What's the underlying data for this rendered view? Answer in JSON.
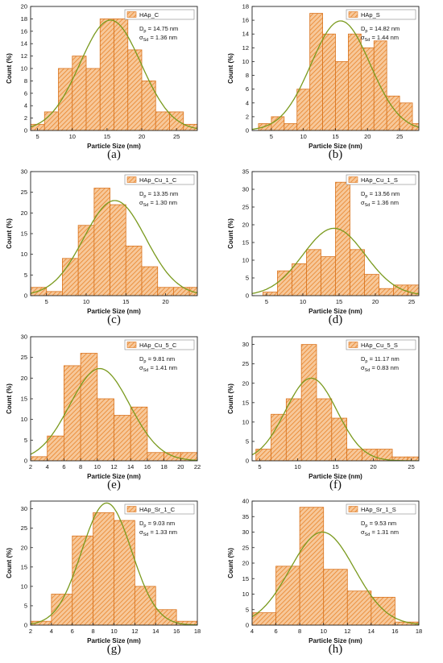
{
  "panel_letters": [
    "(a)",
    "(b)",
    "(c)",
    "(d)",
    "(e)",
    "(f)",
    "(g)",
    "(h)"
  ],
  "colors": {
    "bar_fill": "#f7c89a",
    "bar_hatch": "#e8842a",
    "bar_edge": "#d9731d",
    "fit_curve": "#7a9a1e",
    "axis": "#222222"
  },
  "chart_data": [
    {
      "type": "bar",
      "legend": "HAp_C",
      "stats": [
        {
          "sym": "D",
          "sub": "p",
          "text": " = 14.75 nm"
        },
        {
          "sym": "σ",
          "sub": "Sd",
          "text": " = 1.36 nm"
        }
      ],
      "xlabel": "Particle Size (nm)",
      "ylabel": "Count (%)",
      "xlim": [
        4,
        28
      ],
      "ylim": [
        0,
        20
      ],
      "xticks": [
        5,
        10,
        15,
        20,
        25
      ],
      "yticks": [
        0,
        2,
        4,
        6,
        8,
        10,
        12,
        14,
        16,
        18,
        20
      ],
      "bins": [
        [
          4,
          1
        ],
        [
          6,
          3
        ],
        [
          8,
          10
        ],
        [
          10,
          12
        ],
        [
          12,
          10
        ],
        [
          14,
          18
        ],
        [
          16,
          18
        ],
        [
          18,
          13
        ],
        [
          20,
          8
        ],
        [
          22,
          3
        ],
        [
          24,
          3
        ],
        [
          26,
          1
        ]
      ],
      "bin_width": 2,
      "fit": {
        "mu": 15.5,
        "sigma": 4.4,
        "peak": 17.8
      }
    },
    {
      "type": "bar",
      "legend": "HAp_S",
      "stats": [
        {
          "sym": "D",
          "sub": "p",
          "text": " = 14.82 nm"
        },
        {
          "sym": "σ",
          "sub": "Sd",
          "text": " = 1.44 nm"
        }
      ],
      "xlabel": "Particle Size (nm)",
      "ylabel": "Count (%)",
      "xlim": [
        2,
        28
      ],
      "ylim": [
        0,
        18
      ],
      "xticks": [
        5,
        10,
        15,
        20,
        25
      ],
      "yticks": [
        0,
        2,
        4,
        6,
        8,
        10,
        12,
        14,
        16,
        18
      ],
      "bins": [
        [
          3,
          1
        ],
        [
          5,
          2
        ],
        [
          7,
          1
        ],
        [
          9,
          6
        ],
        [
          11,
          17
        ],
        [
          13,
          14
        ],
        [
          15,
          10
        ],
        [
          17,
          14
        ],
        [
          19,
          12
        ],
        [
          21,
          13
        ],
        [
          23,
          5
        ],
        [
          25,
          4
        ],
        [
          27,
          1
        ]
      ],
      "bin_width": 2,
      "fit": {
        "mu": 15.8,
        "sigma": 4.6,
        "peak": 15.9
      }
    },
    {
      "type": "bar",
      "legend": "HAp_Cu_1_C",
      "stats": [
        {
          "sym": "D",
          "sub": "p",
          "text": " = 13.35 nm"
        },
        {
          "sym": "σ",
          "sub": "Sd",
          "text": " = 1.30 nm"
        }
      ],
      "xlabel": "Particle Size (nm)",
      "ylabel": "Count (%)",
      "xlim": [
        3,
        24
      ],
      "ylim": [
        0,
        30
      ],
      "xticks": [
        5,
        10,
        15,
        20
      ],
      "yticks": [
        0,
        5,
        10,
        15,
        20,
        25,
        30
      ],
      "bins": [
        [
          3,
          2
        ],
        [
          5,
          1
        ],
        [
          7,
          9
        ],
        [
          9,
          17
        ],
        [
          11,
          26
        ],
        [
          13,
          22
        ],
        [
          15,
          12
        ],
        [
          17,
          7
        ],
        [
          19,
          2
        ],
        [
          21,
          2
        ],
        [
          23,
          2
        ]
      ],
      "bin_width": 2,
      "fit": {
        "mu": 13.6,
        "sigma": 3.9,
        "peak": 23.0
      }
    },
    {
      "type": "bar",
      "legend": "HAp_Cu_1_S",
      "stats": [
        {
          "sym": "D",
          "sub": "p",
          "text": " = 13.56 nm"
        },
        {
          "sym": "σ",
          "sub": "Sd",
          "text": " = 1.36 nm"
        }
      ],
      "xlabel": "Particle Size (nm)",
      "ylabel": "Count (%)",
      "xlim": [
        3,
        26
      ],
      "ylim": [
        0,
        35
      ],
      "xticks": [
        5,
        10,
        15,
        20,
        25
      ],
      "yticks": [
        0,
        5,
        10,
        15,
        20,
        25,
        30,
        35
      ],
      "bins": [
        [
          4.5,
          1
        ],
        [
          6.5,
          7
        ],
        [
          8.5,
          9
        ],
        [
          10.5,
          13
        ],
        [
          12.5,
          11
        ],
        [
          14.5,
          32
        ],
        [
          16.5,
          13
        ],
        [
          18.5,
          6
        ],
        [
          20.5,
          2
        ],
        [
          22.5,
          3
        ],
        [
          24.5,
          3
        ]
      ],
      "bin_width": 2,
      "fit": {
        "mu": 14.3,
        "sigma": 4.3,
        "peak": 19.0
      }
    },
    {
      "type": "bar",
      "legend": "HAp_Cu_5_C",
      "stats": [
        {
          "sym": "D",
          "sub": "p",
          "text": " = 9.81 nm"
        },
        {
          "sym": "σ",
          "sub": "Sd",
          "text": " = 1.41 nm"
        }
      ],
      "xlabel": "Particle Size (nm)",
      "ylabel": "Count (%)",
      "xlim": [
        2,
        22
      ],
      "ylim": [
        0,
        30
      ],
      "xticks": [
        2,
        4,
        6,
        8,
        10,
        12,
        14,
        16,
        18,
        20,
        22
      ],
      "yticks": [
        0,
        5,
        10,
        15,
        20,
        25,
        30
      ],
      "bins": [
        [
          2,
          1
        ],
        [
          4,
          6
        ],
        [
          6,
          23
        ],
        [
          8,
          26
        ],
        [
          10,
          15
        ],
        [
          12,
          11
        ],
        [
          14,
          13
        ],
        [
          16,
          2
        ],
        [
          18,
          2
        ],
        [
          20,
          2
        ]
      ],
      "bin_width": 2,
      "fit": {
        "mu": 10.3,
        "sigma": 3.6,
        "peak": 22.3
      }
    },
    {
      "type": "bar",
      "legend": "HAp_Cu_5_S",
      "stats": [
        {
          "sym": "D",
          "sub": "p",
          "text": " = 11.17 nm"
        },
        {
          "sym": "σ",
          "sub": "Sd",
          "text": " = 0.83 nm"
        }
      ],
      "xlabel": "Particle Size (nm)",
      "ylabel": "Count (%)",
      "xlim": [
        4,
        26
      ],
      "ylim": [
        0,
        32
      ],
      "xticks": [
        5,
        10,
        15,
        20,
        25
      ],
      "yticks": [
        0,
        5,
        10,
        15,
        20,
        25,
        30
      ],
      "bins": [
        [
          4.5,
          3
        ],
        [
          6.5,
          12
        ],
        [
          8.5,
          16
        ],
        [
          10.5,
          30
        ],
        [
          12.5,
          16
        ],
        [
          14.5,
          11
        ],
        [
          16.5,
          3
        ],
        [
          18.5,
          3
        ],
        [
          20.5,
          3
        ],
        [
          22.5,
          1
        ],
        [
          24.5,
          1
        ]
      ],
      "bin_width": 2,
      "fit": {
        "mu": 11.8,
        "sigma": 3.4,
        "peak": 21.3
      }
    },
    {
      "type": "bar",
      "legend": "HAp_Sr_1_C",
      "stats": [
        {
          "sym": "D",
          "sub": "p",
          "text": " = 9.03 nm"
        },
        {
          "sym": "σ",
          "sub": "Sd",
          "text": " = 1.33 nm"
        }
      ],
      "xlabel": "Particle Size (nm)",
      "ylabel": "Count (%)",
      "xlim": [
        2,
        18
      ],
      "ylim": [
        0,
        32
      ],
      "xticks": [
        2,
        4,
        6,
        8,
        10,
        12,
        14,
        16,
        18
      ],
      "yticks": [
        0,
        5,
        10,
        15,
        20,
        25,
        30
      ],
      "bins": [
        [
          2,
          1
        ],
        [
          4,
          8
        ],
        [
          6,
          23
        ],
        [
          8,
          29
        ],
        [
          10,
          27
        ],
        [
          12,
          10
        ],
        [
          14,
          4
        ],
        [
          16,
          1
        ]
      ],
      "bin_width": 2,
      "fit": {
        "mu": 9.3,
        "sigma": 2.4,
        "peak": 31.5
      }
    },
    {
      "type": "bar",
      "legend": "HAp_Sr_1_S",
      "stats": [
        {
          "sym": "D",
          "sub": "p",
          "text": " = 9.53 nm"
        },
        {
          "sym": "σ",
          "sub": "Sd",
          "text": " = 1.31 nm"
        }
      ],
      "xlabel": "Particle Size (nm)",
      "ylabel": "Count (%)",
      "xlim": [
        4,
        18
      ],
      "ylim": [
        0,
        40
      ],
      "xticks": [
        4,
        6,
        8,
        10,
        12,
        14,
        16,
        18
      ],
      "yticks": [
        0,
        5,
        10,
        15,
        20,
        25,
        30,
        35,
        40
      ],
      "bins": [
        [
          4,
          4
        ],
        [
          6,
          19
        ],
        [
          8,
          38
        ],
        [
          10,
          18
        ],
        [
          12,
          11
        ],
        [
          14,
          9
        ],
        [
          16,
          1
        ]
      ],
      "bin_width": 2,
      "fit": {
        "mu": 9.9,
        "sigma": 2.7,
        "peak": 30.0
      }
    }
  ]
}
